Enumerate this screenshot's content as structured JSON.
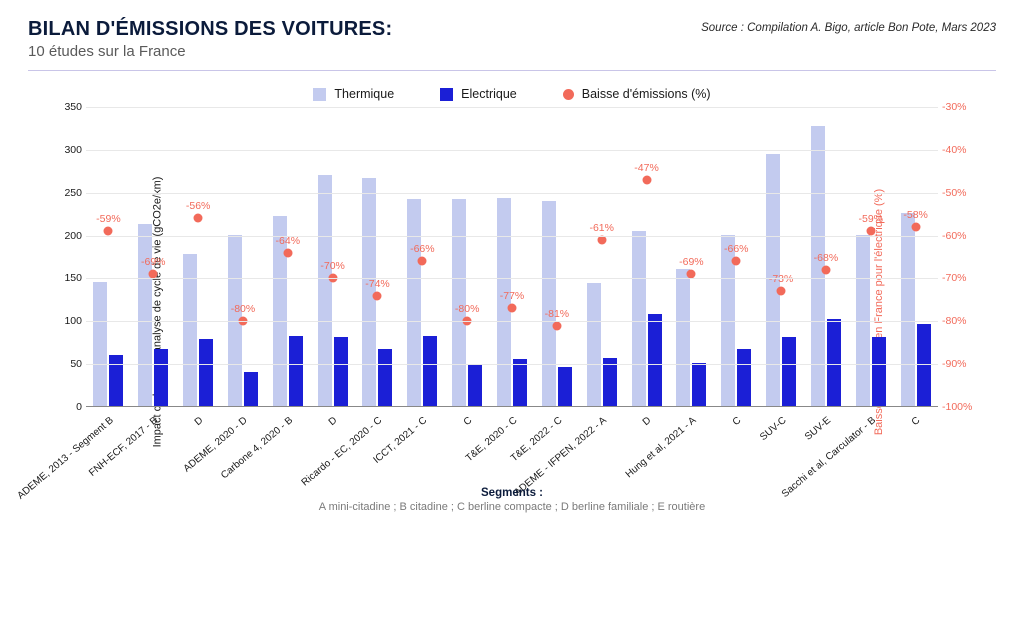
{
  "header": {
    "title": "BILAN D'ÉMISSIONS DES VOITURES:",
    "subtitle": "10 études sur la France",
    "source": "Source : Compilation A. Bigo, article Bon Pote, Mars 2023"
  },
  "legend": {
    "thermique": "Thermique",
    "electrique": "Electrique",
    "baisse": "Baisse d'émissions (%)"
  },
  "colors": {
    "thermique": "#c3cbef",
    "electrique": "#1b1fd6",
    "baisse": "#f26a5a",
    "grid": "#e8e8e8",
    "text": "#1a1a1a",
    "right_axis": "#f26a5a"
  },
  "axes": {
    "left_label": "Impact carbone en analyse de cycle de vie (gCO2e/km)",
    "right_label": "Baisse d'émissions en France pour l'électrique (%)",
    "left_max": 350,
    "left_step": 50,
    "right_min": -100,
    "right_max": -30,
    "right_step": 10
  },
  "groups": [
    {
      "label": "ADEME, 2013 - Segment B",
      "thermique": 145,
      "electrique": 60,
      "pct": -59
    },
    {
      "label": "FNH-ECF, 2017 - B",
      "thermique": 212,
      "electrique": 67,
      "pct": -69
    },
    {
      "label": "D",
      "thermique": 177,
      "electrique": 78,
      "pct": -56
    },
    {
      "label": "ADEME, 2020 - D",
      "thermique": 200,
      "electrique": 40,
      "pct": -80
    },
    {
      "label": "Carbone 4, 2020 - B",
      "thermique": 222,
      "electrique": 82,
      "pct": -64
    },
    {
      "label": "D",
      "thermique": 269,
      "electrique": 80,
      "pct": -70
    },
    {
      "label": "Ricardo - EC, 2020 - C",
      "thermique": 266,
      "electrique": 67,
      "pct": -74
    },
    {
      "label": "ICCT, 2021 - C",
      "thermique": 242,
      "electrique": 82,
      "pct": -66
    },
    {
      "label": "C",
      "thermique": 242,
      "electrique": 48,
      "pct": -80
    },
    {
      "label": "T&E, 2020 - C",
      "thermique": 243,
      "electrique": 55,
      "pct": -77
    },
    {
      "label": "T&E, 2022 - C",
      "thermique": 239,
      "electrique": 46,
      "pct": -81
    },
    {
      "label": "ADEME - IFPEN, 2022 - A",
      "thermique": 143,
      "electrique": 56,
      "pct": -61
    },
    {
      "label": "D",
      "thermique": 204,
      "electrique": 107,
      "pct": -47
    },
    {
      "label": "Hung et al, 2021 - A",
      "thermique": 160,
      "electrique": 50,
      "pct": -69
    },
    {
      "label": "C",
      "thermique": 199,
      "electrique": 67,
      "pct": -66
    },
    {
      "label": "SUV-C",
      "thermique": 294,
      "electrique": 80,
      "pct": -73
    },
    {
      "label": "SUV-E",
      "thermique": 327,
      "electrique": 102,
      "pct": -68
    },
    {
      "label": "Sacchi et al, Carculator - B",
      "thermique": 199,
      "electrique": 80,
      "pct": -59
    },
    {
      "label": "C",
      "thermique": 225,
      "electrique": 96,
      "pct": -58
    }
  ],
  "footnote": {
    "title": "Segments :",
    "text": "A mini-citadine ; B citadine ; C berline compacte ; D berline familiale ; E routière"
  }
}
